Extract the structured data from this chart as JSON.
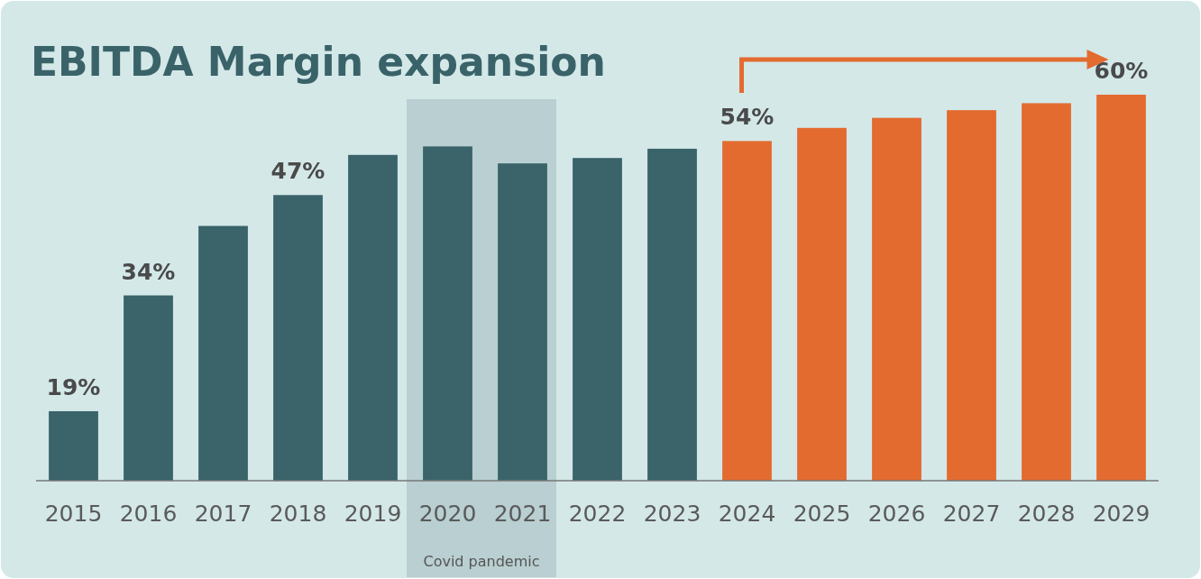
{
  "chart_data": {
    "type": "bar",
    "title": "EBITDA Margin expansion",
    "categories": [
      "2015",
      "2016",
      "2017",
      "2018",
      "2019",
      "2020",
      "2021",
      "2022",
      "2023",
      "2024",
      "2025",
      "2026",
      "2027",
      "2028",
      "2029"
    ],
    "values": [
      19,
      34,
      43,
      47,
      52.2,
      53.3,
      51.1,
      51.8,
      53,
      54,
      55.7,
      57,
      58,
      58.9,
      60
    ],
    "value_labels": [
      "19%",
      "34%",
      null,
      "47%",
      null,
      null,
      null,
      null,
      null,
      "54%",
      null,
      null,
      null,
      null,
      "60%"
    ],
    "colors": [
      "#3a636a",
      "#3a636a",
      "#3a636a",
      "#3a636a",
      "#3a636a",
      "#3a636a",
      "#3a636a",
      "#3a636a",
      "#3a636a",
      "#e36b30",
      "#e36b30",
      "#e36b30",
      "#e36b30",
      "#e36b30",
      "#e36b30"
    ],
    "ylim": [
      10,
      60
    ],
    "tick_labels": "x",
    "bands": [
      {
        "axis": "x",
        "from": "2020",
        "to": "2021",
        "label": "Covid pandemic",
        "color": "#b9cfd1"
      }
    ]
  }
}
